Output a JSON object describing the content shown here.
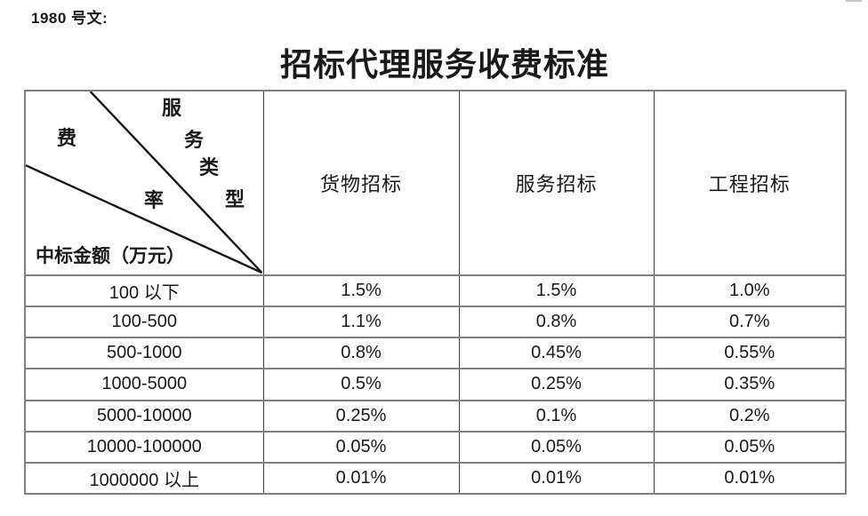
{
  "doc": {
    "ref_label": "1980 号文:",
    "title": "招标代理服务收费标准"
  },
  "table": {
    "corner": {
      "service_type_chars": [
        "服",
        "务",
        "类",
        "型"
      ],
      "fee_rate_chars": [
        "费",
        "率"
      ],
      "amount_axis_label": "中标金额（万元）"
    },
    "column_headers": [
      "货物招标",
      "服务招标",
      "工程招标"
    ],
    "rows": [
      {
        "range": "100 以下",
        "values": [
          "1.5%",
          "1.5%",
          "1.0%"
        ]
      },
      {
        "range": "100-500",
        "values": [
          "1.1%",
          "0.8%",
          "0.7%"
        ]
      },
      {
        "range": "500-1000",
        "values": [
          "0.8%",
          "0.45%",
          "0.55%"
        ]
      },
      {
        "range": "1000-5000",
        "values": [
          "0.5%",
          "0.25%",
          "0.35%"
        ]
      },
      {
        "range": "5000-10000",
        "values": [
          "0.25%",
          "0.1%",
          "0.2%"
        ]
      },
      {
        "range": "10000-100000",
        "values": [
          "0.05%",
          "0.05%",
          "0.05%"
        ]
      },
      {
        "range": "1000000 以上",
        "values": [
          "0.01%",
          "0.01%",
          "0.01%"
        ]
      }
    ]
  },
  "colors": {
    "background": "#ffffff",
    "text": "#1a1a1a",
    "border_horizontal": "#7f7f7f",
    "border_vertical": "#3f3f3f",
    "diagonal_line": "#161616"
  }
}
